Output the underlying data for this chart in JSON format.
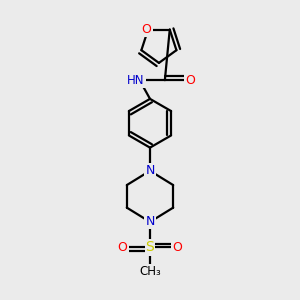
{
  "background_color": "#ebebeb",
  "atom_colors": {
    "C": "#000000",
    "N": "#0000cc",
    "O": "#ff0000",
    "S": "#cccc00",
    "H": "#555555"
  },
  "bond_color": "#000000",
  "figsize": [
    3.0,
    3.0
  ],
  "dpi": 100,
  "lw": 1.6,
  "xlim": [
    0,
    10
  ],
  "ylim": [
    0,
    10
  ]
}
